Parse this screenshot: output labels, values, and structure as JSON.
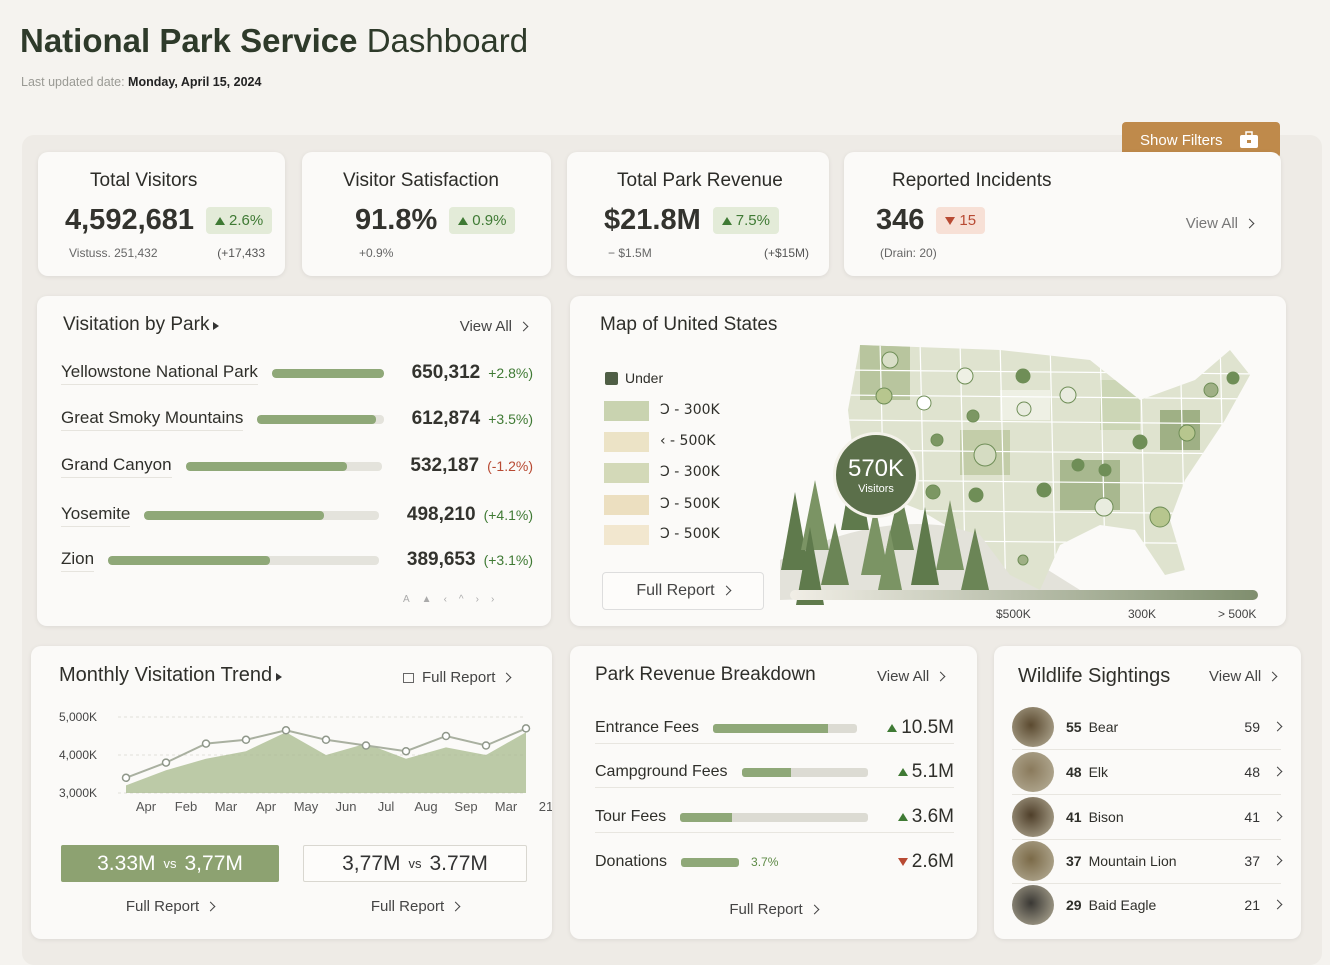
{
  "header": {
    "title_bold": "National Park Service",
    "title_rest": "Dashboard",
    "updated_label": "Last updated date:",
    "updated_value": "Monday, April 15, 2024"
  },
  "filters_button": "Show Filters",
  "kpis": [
    {
      "title": "Total Visitors",
      "value": "4,592,681",
      "change": "2.6%",
      "trend": "up",
      "sub_left": "Vistuss. 251,432",
      "sub_right": "(+17,433"
    },
    {
      "title": "Visitor Satisfaction",
      "value": "91.8%",
      "change": "0.9%",
      "trend": "up",
      "sub_left": "+0.9%"
    },
    {
      "title": "Total Park Revenue",
      "value": "$21.8M",
      "change": "7.5%",
      "trend": "up",
      "sub_left": "− $1.5M",
      "sub_right": "(+$15M)"
    },
    {
      "title": "Reported Incidents",
      "value": "346",
      "change": "15",
      "trend": "down",
      "sub_left": "(Drain: 20)",
      "link": "View All"
    }
  ],
  "visitation_by_park": {
    "title": "Visitation by Park",
    "link": "View All",
    "rows": [
      {
        "name": "Yellowstone National Park",
        "value": "650,312",
        "change": "+2.8%)",
        "trend": "up"
      },
      {
        "name": "Great Smoky Mountains",
        "value": "612,874",
        "change": "+3.5%)",
        "trend": "up"
      },
      {
        "name": "Grand Canyon",
        "value": "532,187",
        "change": "(-1.2%)",
        "trend": "down"
      },
      {
        "name": "Yosemite",
        "value": "498,210",
        "change": "(+4.1%)",
        "trend": "up"
      },
      {
        "name": "Zion",
        "value": "389,653",
        "change": "(+3.1%)",
        "trend": "up"
      }
    ],
    "pager": [
      "A",
      "▲",
      "‹",
      "^",
      "›",
      "›"
    ]
  },
  "map": {
    "title": "Map of United States",
    "legend_title": "Under",
    "legend": [
      {
        "label": "Ↄ - 300K",
        "color": "#c9d3b0"
      },
      {
        "label": "‹ - 500K",
        "color": "#ece3c6"
      },
      {
        "label": "Ↄ - 300K",
        "color": "#d3d9b8"
      },
      {
        "label": "Ↄ - 500K",
        "color": "#ecdfc0"
      },
      {
        "label": "Ↄ - 500K",
        "color": "#f2e7cf"
      }
    ],
    "bubble_value": "570K",
    "bubble_label": "Visitors",
    "scale_labels": [
      "$500K",
      "300K",
      "> 500K"
    ],
    "link": "Full Report"
  },
  "chart_data": {
    "type": "line",
    "title": "Monthly Visitation Trend",
    "categories": [
      "Apr",
      "Feb",
      "Mar",
      "Apr",
      "May",
      "Jun",
      "Jul",
      "Aug",
      "Sep",
      "Mar",
      "21"
    ],
    "series": [
      {
        "type": "area",
        "color": "#a7b98c",
        "values": [
          3200,
          3600,
          3900,
          4100,
          4600,
          4000,
          4300,
          3900,
          4200,
          4000,
          4600
        ]
      },
      {
        "type": "line",
        "color": "#a9b0a0",
        "values": [
          3400,
          3800,
          4300,
          4400,
          4650,
          4400,
          4250,
          4100,
          4500,
          4250,
          4700
        ]
      }
    ],
    "ylim": [
      3000,
      5000
    ],
    "yticks": [
      {
        "value": 3000,
        "label": "3,000K"
      },
      {
        "value": 4000,
        "label": "4,000K"
      },
      {
        "value": 5000,
        "label": "5,000K"
      }
    ],
    "grid": true
  },
  "monthly_trend": {
    "link": "Full Report",
    "comparisons": [
      {
        "left": "3.33M",
        "vs": "vs",
        "right": "3,77M",
        "link": "Full Report",
        "style": "filled"
      },
      {
        "left": "3,77M",
        "vs": "vs",
        "right": "3.77M",
        "link": "Full Report",
        "style": "outline"
      }
    ]
  },
  "revenue": {
    "title": "Park Revenue Breakdown",
    "link": "View All",
    "rows": [
      {
        "name": "Entrance Fees",
        "value": "10.5M",
        "trend": "up"
      },
      {
        "name": "Campground Fees",
        "value": "5.1M",
        "trend": "up"
      },
      {
        "name": "Tour Fees",
        "value": "3.6M",
        "trend": "up"
      },
      {
        "name": "Donations",
        "value": "2.6M",
        "trend": "down",
        "note": "3.7%"
      }
    ],
    "footer": "Full Report"
  },
  "wildlife": {
    "title": "Wildlife Sightings",
    "link": "View All",
    "rows": [
      {
        "count": "55",
        "name": "Bear",
        "total": "59"
      },
      {
        "count": "48",
        "name": "Elk",
        "total": "48"
      },
      {
        "count": "41",
        "name": "Bison",
        "total": "41"
      },
      {
        "count": "37",
        "name": "Mountain Lion",
        "total": "37"
      },
      {
        "count": "29",
        "name": "Baid Eagle",
        "total": "21"
      }
    ]
  }
}
